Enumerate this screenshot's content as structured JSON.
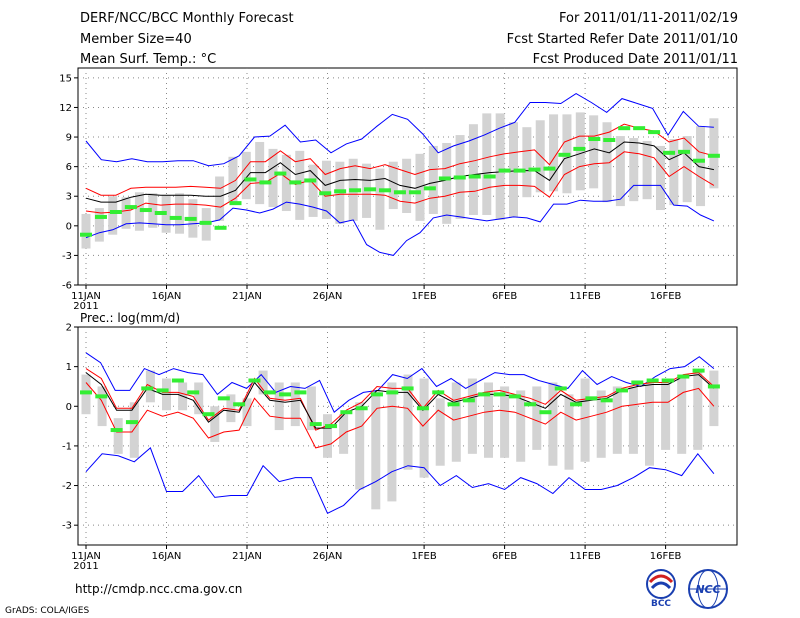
{
  "header": {
    "title": "DERF/NCC/BCC Monthly Forecast",
    "member_size": "Member Size=40",
    "variable": "Mean Surf. Temp.: °C",
    "period": "For 2011/01/11-2011/02/19",
    "start": "Fcst Started Refer Date 2011/01/10",
    "produced": "Fcst Produced Date 2011/01/11"
  },
  "footer": {
    "url": "http://cmdp.ncc.cma.gov.cn",
    "credit": "GrADS: COLA/IGES"
  },
  "logos": {
    "bcc": "BCC",
    "ncc": "NCC"
  },
  "colors": {
    "envelope": "#0000ff",
    "spread": "#ff0000",
    "mean": "#000000",
    "obs": "#33ee33",
    "box": "#d3d3d3"
  },
  "chart_data": [
    {
      "type": "line",
      "title": "Mean Surf. Temp.: °C",
      "xlabel": "",
      "ylabel": "",
      "x_tick_labels": [
        "11JAN",
        "16JAN",
        "21JAN",
        "26JAN",
        "1FEB",
        "6FEB",
        "11FEB",
        "16FEB"
      ],
      "x_tick_days": [
        1,
        6,
        11,
        16,
        22,
        27,
        32,
        37
      ],
      "year_label": "2011",
      "ylim": [
        -6,
        16
      ],
      "y_ticks": [
        -6,
        -3,
        0,
        3,
        6,
        9,
        12,
        15
      ],
      "days": 40,
      "series": [
        {
          "name": "max",
          "values": [
            8.6,
            6.7,
            6.5,
            6.8,
            6.5,
            6.5,
            6.6,
            6.6,
            6.1,
            6.3,
            7.1,
            9,
            9.1,
            10.2,
            8.5,
            8.7,
            7.4,
            8.3,
            8.8,
            10.1,
            11.3,
            10.8,
            9.3,
            7.4,
            8.1,
            8.6,
            9.2,
            9.9,
            10.5,
            12.5,
            12.5,
            12.4,
            13.4,
            12.5,
            11.5,
            12.9,
            12.4,
            11.9,
            9.2,
            11.6,
            10.1,
            10
          ]
        },
        {
          "name": "upper",
          "values": [
            3.8,
            3.1,
            3.1,
            3.8,
            3.9,
            3.9,
            3.9,
            4,
            3.9,
            3.8,
            4.6,
            6.5,
            6.5,
            7.6,
            6.5,
            6.8,
            5.2,
            5.8,
            6.1,
            5.8,
            6.2,
            5.7,
            5.2,
            5.7,
            5.8,
            6.3,
            6.6,
            7,
            7.3,
            7.5,
            7.7,
            6.2,
            8.5,
            9.1,
            9.1,
            9.5,
            10.3,
            9.9,
            9.6,
            8.5,
            8.9,
            7.5,
            7.1
          ]
        },
        {
          "name": "mean",
          "values": [
            2.8,
            2.4,
            2.4,
            2.9,
            3.2,
            3.1,
            3.1,
            3.1,
            3,
            3,
            3.6,
            5.4,
            5.4,
            6.4,
            5.2,
            5.6,
            4.1,
            4.6,
            4.7,
            4.6,
            4.8,
            4.1,
            3.8,
            4.3,
            4.6,
            5,
            5.2,
            5.4,
            5.5,
            5.6,
            5.6,
            4.6,
            6.8,
            7.3,
            7.8,
            7.4,
            8.5,
            8.4,
            8.1,
            6.7,
            7.4,
            6,
            5.7
          ]
        },
        {
          "name": "lower",
          "values": [
            1.5,
            1.3,
            1.4,
            1.6,
            2.3,
            2.1,
            2.2,
            2.2,
            2.1,
            1.9,
            2.8,
            4.3,
            4.4,
            5.3,
            4.2,
            4.6,
            3,
            3.2,
            3.2,
            3.2,
            3.1,
            2.5,
            2.3,
            2.8,
            3,
            3.4,
            3.5,
            3.9,
            4.1,
            4.1,
            4,
            2.9,
            5.2,
            6,
            6.3,
            6.4,
            7.5,
            7.3,
            6.9,
            5,
            6,
            5,
            4.1
          ]
        },
        {
          "name": "min",
          "values": [
            -1.2,
            -0.7,
            -0.4,
            0.2,
            0.3,
            0.2,
            0.1,
            0.1,
            0.2,
            0.3,
            0.6,
            1.8,
            1.6,
            1.3,
            1.7,
            2.4,
            2.2,
            1.9,
            1.5,
            0.3,
            0.6,
            -1.9,
            -2.7,
            -3,
            -1.5,
            -0.7,
            0.8,
            1.1,
            0.9,
            0.7,
            0.5,
            0.7,
            0.9,
            0.8,
            0.4,
            2.2,
            2.2,
            2.6,
            2.5,
            2.5,
            2.7,
            4.1,
            4.1,
            4.1,
            2.1,
            2,
            1.1,
            0.5
          ]
        },
        {
          "name": "observed",
          "values": [
            -0.9,
            0.9,
            1.4,
            1.9,
            1.6,
            1.3,
            0.8,
            0.7,
            0.3,
            -0.2,
            2.3,
            4.7,
            4.4,
            5.3,
            4.4,
            4.6,
            3.3,
            3.5,
            3.6,
            3.7,
            3.6,
            3.4,
            3.4,
            3.8,
            4.8,
            4.9,
            5,
            5,
            5.6,
            5.6,
            5.7,
            5.8,
            7.2,
            7.8,
            8.8,
            8.7,
            9.9,
            9.9,
            9.5,
            7.4,
            7.5,
            6.6,
            7.1
          ]
        }
      ],
      "box_ranges": [
        [
          -2.3,
          1.2
        ],
        [
          -1.6,
          1.8
        ],
        [
          -0.9,
          3
        ],
        [
          -0.3,
          2.9
        ],
        [
          -0.5,
          3.4
        ],
        [
          -0.2,
          3.3
        ],
        [
          -0.7,
          3.1
        ],
        [
          -0.8,
          3.3
        ],
        [
          -1.2,
          2.7
        ],
        [
          -1.5,
          1.8
        ],
        [
          0.5,
          5
        ],
        [
          2.4,
          7
        ],
        [
          2.7,
          7.5
        ],
        [
          2.2,
          8.5
        ],
        [
          1.9,
          7.8
        ],
        [
          1.5,
          7.2
        ],
        [
          0.6,
          7.6
        ],
        [
          0.9,
          6.2
        ],
        [
          0.7,
          6.6
        ],
        [
          0.2,
          6.5
        ],
        [
          0.5,
          6.8
        ],
        [
          0.8,
          6.3
        ],
        [
          -0.4,
          5.8
        ],
        [
          1.7,
          6.5
        ],
        [
          1.3,
          6.8
        ],
        [
          0.5,
          7.3
        ],
        [
          1.2,
          8.1
        ],
        [
          0.2,
          8.4
        ],
        [
          0.7,
          9.2
        ],
        [
          1.1,
          10.3
        ],
        [
          1.1,
          11.4
        ],
        [
          0.6,
          11.4
        ],
        [
          0.9,
          10.5
        ],
        [
          2.9,
          10
        ],
        [
          3.4,
          10.7
        ],
        [
          3.5,
          11.3
        ],
        [
          3.3,
          11.3
        ],
        [
          3.6,
          11.5
        ],
        [
          3.8,
          11.2
        ],
        [
          2.4,
          10.5
        ],
        [
          2,
          9.1
        ],
        [
          2.5,
          8.9
        ],
        [
          2.7,
          8.6
        ],
        [
          1.6,
          8.1
        ],
        [
          2.1,
          8.8
        ],
        [
          2.4,
          9.1
        ],
        [
          2,
          10.1
        ],
        [
          3.8,
          10.9
        ]
      ]
    },
    {
      "type": "line",
      "title": "Prec.: log(mm/d)",
      "xlabel": "",
      "ylabel": "",
      "x_tick_labels": [
        "11JAN",
        "16JAN",
        "21JAN",
        "26JAN",
        "1FEB",
        "6FEB",
        "11FEB",
        "16FEB"
      ],
      "x_tick_days": [
        1,
        6,
        11,
        16,
        22,
        27,
        32,
        37
      ],
      "year_label": "2011",
      "ylim": [
        -3.5,
        2
      ],
      "y_ticks": [
        -3,
        -2,
        -1,
        0,
        1,
        2
      ],
      "days": 40,
      "series": [
        {
          "name": "max",
          "values": [
            1.35,
            1.1,
            0.4,
            0.4,
            0.95,
            0.8,
            0.95,
            0.85,
            0.8,
            0.3,
            0.6,
            0.45,
            0.8,
            0.35,
            0.5,
            0.45,
            0.65,
            -0.15,
            0.15,
            0.35,
            0.4,
            0.8,
            0.7,
            0.95,
            0.5,
            0.7,
            0.45,
            0.65,
            0.85,
            0.8,
            0.8,
            0.65,
            0.55,
            0.45,
            0.9,
            0.55,
            0.75,
            0.6,
            0.5,
            0.75,
            0.95,
            1,
            1.25,
            0.95
          ]
        },
        {
          "name": "upper",
          "values": [
            0.95,
            0.7,
            -0.05,
            -0.05,
            0.55,
            0.35,
            0.35,
            0.25,
            -0.35,
            -0.05,
            -0.1,
            0.7,
            0.2,
            0.15,
            0.2,
            -0.6,
            -0.45,
            -0.1,
            0.1,
            0.5,
            0.45,
            0.45,
            -0.05,
            0.4,
            0.15,
            0.25,
            0.35,
            0.4,
            0.3,
            0.2,
            0.05,
            0.4,
            0.15,
            0.2,
            0.25,
            0.45,
            0.55,
            0.6,
            0.6,
            0.8,
            0.85,
            0.5
          ]
        },
        {
          "name": "mean",
          "values": [
            0.85,
            0.55,
            -0.1,
            -0.1,
            0.45,
            0.3,
            0.3,
            0.15,
            -0.4,
            -0.1,
            -0.15,
            0.6,
            0.15,
            0.1,
            0.15,
            -0.55,
            -0.55,
            -0.15,
            0,
            0.4,
            0.35,
            0.35,
            -0.1,
            0.3,
            0.1,
            0.2,
            0.3,
            0.3,
            0.25,
            0.1,
            -0.05,
            0.3,
            0.1,
            0.15,
            0.2,
            0.4,
            0.5,
            0.55,
            0.55,
            0.75,
            0.8,
            0.45
          ]
        },
        {
          "name": "lower",
          "values": [
            0.6,
            0.15,
            -0.65,
            -0.65,
            -0.1,
            -0.25,
            -0.15,
            -0.3,
            -0.8,
            -0.65,
            -0.6,
            0.2,
            -0.25,
            -0.3,
            -0.3,
            -1.05,
            -0.95,
            -0.65,
            -0.5,
            -0.05,
            0,
            -0.05,
            -0.5,
            -0.1,
            -0.35,
            -0.25,
            -0.15,
            -0.1,
            -0.15,
            -0.3,
            -0.45,
            -0.15,
            -0.35,
            -0.25,
            -0.15,
            0,
            0.05,
            0.1,
            0.1,
            0.35,
            0.45,
            0
          ]
        },
        {
          "name": "min",
          "values": [
            -1.65,
            -1.2,
            -1.25,
            -1.4,
            -1.05,
            -2.15,
            -2.15,
            -1.75,
            -2.3,
            -2.25,
            -2.25,
            -1.5,
            -1.9,
            -1.8,
            -1.8,
            -2.7,
            -2.5,
            -2.1,
            -1.9,
            -1.65,
            -1.5,
            -1.55,
            -2,
            -1.75,
            -2.05,
            -1.95,
            -2.1,
            -1.8,
            -1.95,
            -2.2,
            -1.8,
            -2.1,
            -2.1,
            -2,
            -1.8,
            -1.55,
            -1.6,
            -1.75,
            -1.2,
            -1.7
          ]
        },
        {
          "name": "observed",
          "values": [
            0.35,
            0.25,
            -0.6,
            -0.4,
            0.45,
            0.4,
            0.65,
            0.35,
            -0.2,
            0.2,
            0.05,
            0.65,
            0.35,
            0.3,
            0.35,
            -0.45,
            -0.5,
            -0.15,
            -0.05,
            0.3,
            0.35,
            0.45,
            -0.05,
            0.35,
            0.05,
            0.15,
            0.3,
            0.3,
            0.25,
            0.05,
            -0.15,
            0.45,
            0.05,
            0.2,
            0.15,
            0.4,
            0.6,
            0.65,
            0.65,
            0.75,
            0.9,
            0.5
          ]
        }
      ],
      "box_ranges": [
        [
          -0.2,
          0.8
        ],
        [
          -0.5,
          0.5
        ],
        [
          -1.2,
          -0.3
        ],
        [
          -1.3,
          0.1
        ],
        [
          0.1,
          0.9
        ],
        [
          -0.1,
          0.7
        ],
        [
          -0.1,
          0.6
        ],
        [
          -0.2,
          0.6
        ],
        [
          -0.9,
          0
        ],
        [
          -0.4,
          0.3
        ],
        [
          -0.5,
          0.2
        ],
        [
          0.3,
          0.9
        ],
        [
          -0.6,
          0.6
        ],
        [
          -0.5,
          0.6
        ],
        [
          -0.6,
          0.5
        ],
        [
          -1.3,
          -0.2
        ],
        [
          -1.2,
          -0.2
        ],
        [
          -2.1,
          0.1
        ],
        [
          -2.6,
          0.4
        ],
        [
          -2.4,
          0.6
        ],
        [
          -1.6,
          0.8
        ],
        [
          -1.8,
          0.7
        ],
        [
          -1.5,
          0.2
        ],
        [
          -1.4,
          0.6
        ],
        [
          -1.2,
          0.7
        ],
        [
          -1.3,
          0.6
        ],
        [
          -1.3,
          0.5
        ],
        [
          -1.4,
          0.4
        ],
        [
          -1.1,
          0.5
        ],
        [
          -1.5,
          0.6
        ],
        [
          -1.6,
          0.3
        ],
        [
          -1.4,
          0.7
        ],
        [
          -1.3,
          0.4
        ],
        [
          -1.2,
          0.5
        ],
        [
          -1.2,
          0.5
        ],
        [
          -1.5,
          0.6
        ],
        [
          -1.1,
          0.7
        ],
        [
          -1.2,
          0.7
        ],
        [
          -1.1,
          0.9
        ],
        [
          -0.5,
          0.9
        ]
      ]
    }
  ]
}
